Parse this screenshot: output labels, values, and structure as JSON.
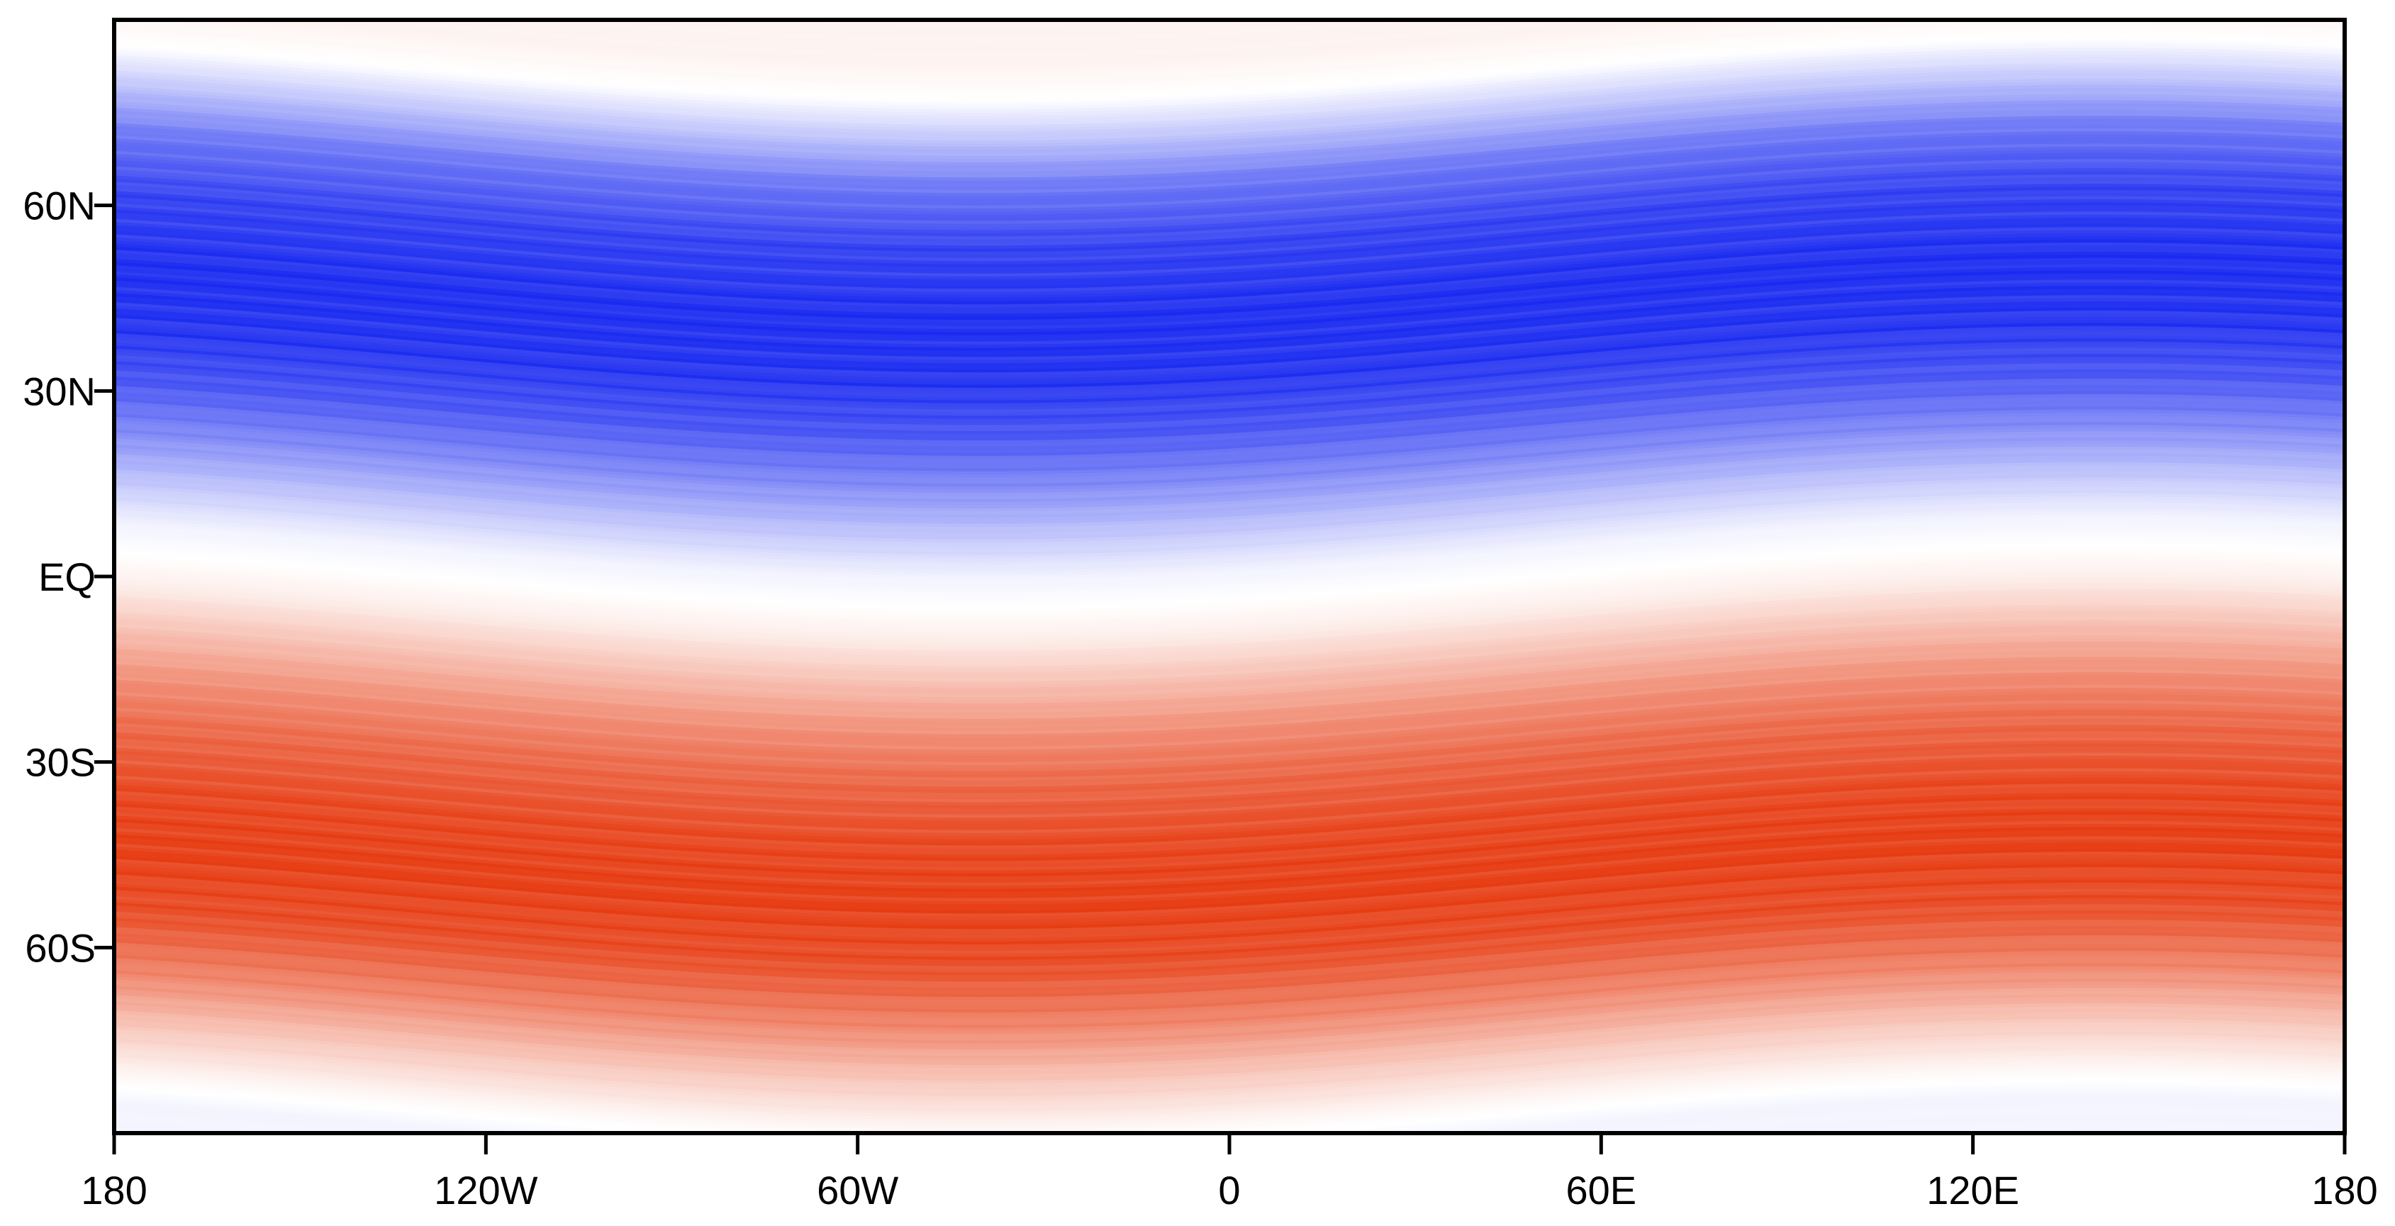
{
  "map": {
    "projection": "equirectangular",
    "lon_range": [
      -180,
      180
    ],
    "lat_range": [
      -90,
      90
    ],
    "x_axis": {
      "ticks": [
        {
          "value": -180,
          "label": "180"
        },
        {
          "value": -120,
          "label": "120W"
        },
        {
          "value": -60,
          "label": "60W"
        },
        {
          "value": 0,
          "label": "0"
        },
        {
          "value": 60,
          "label": "60E"
        },
        {
          "value": 120,
          "label": "120E"
        },
        {
          "value": 180,
          "label": "180"
        }
      ]
    },
    "y_axis": {
      "ticks": [
        {
          "value": 60,
          "label": "60N"
        },
        {
          "value": 30,
          "label": "30N"
        },
        {
          "value": 0,
          "label": "EQ"
        },
        {
          "value": -30,
          "label": "30S"
        },
        {
          "value": -60,
          "label": "60S"
        }
      ]
    },
    "colormap": {
      "negative": "#1a2af0",
      "zero": "#ffffff",
      "positive": "#e63a10"
    },
    "field_bands": [
      {
        "lat": 88,
        "value": 0.06
      },
      {
        "lat": 82,
        "value": 0.0
      },
      {
        "lat": 76,
        "value": -0.25
      },
      {
        "lat": 68,
        "value": -0.62
      },
      {
        "lat": 58,
        "value": -0.86
      },
      {
        "lat": 46,
        "value": -0.96
      },
      {
        "lat": 36,
        "value": -0.92
      },
      {
        "lat": 28,
        "value": -0.78
      },
      {
        "lat": 20,
        "value": -0.55
      },
      {
        "lat": 12,
        "value": -0.28
      },
      {
        "lat": 5,
        "value": -0.06
      },
      {
        "lat": 0,
        "value": 0.0
      },
      {
        "lat": -5,
        "value": 0.08
      },
      {
        "lat": -12,
        "value": 0.3
      },
      {
        "lat": -20,
        "value": 0.55
      },
      {
        "lat": -28,
        "value": 0.74
      },
      {
        "lat": -38,
        "value": 0.9
      },
      {
        "lat": -48,
        "value": 0.95
      },
      {
        "lat": -58,
        "value": 0.88
      },
      {
        "lat": -68,
        "value": 0.6
      },
      {
        "lat": -76,
        "value": 0.3
      },
      {
        "lat": -84,
        "value": 0.05
      },
      {
        "lat": -89,
        "value": -0.05
      }
    ],
    "wave_amplitude_deg": 5
  }
}
